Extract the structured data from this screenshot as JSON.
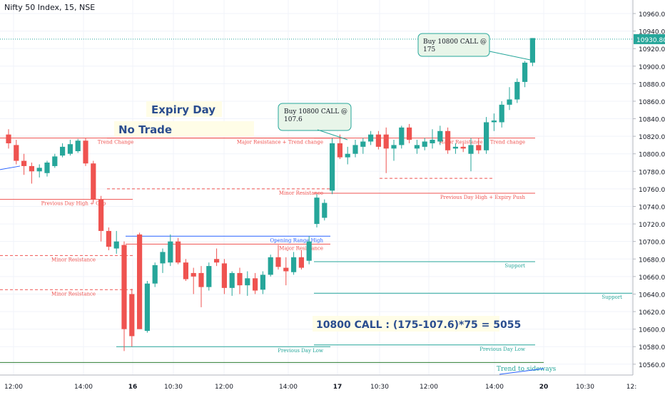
{
  "symbol_title": "Nifty 50 Index, 15, NSE",
  "chart_data": {
    "type": "candlestick",
    "title": "Nifty 50 Index, 15, NSE",
    "ylim": [
      10550,
      10975
    ],
    "y_ticks": [
      10960,
      10940,
      10920,
      10900,
      10880,
      10860,
      10840,
      10820,
      10800,
      10780,
      10760,
      10740,
      10720,
      10700,
      10680,
      10660,
      10640,
      10620,
      10600,
      10580,
      10560
    ],
    "x_ticks": [
      "12:00",
      "14:00",
      "16",
      "10:30",
      "12:00",
      "14:00",
      "17",
      "10:30",
      "12:00",
      "14:00",
      "20",
      "10:30",
      "12:"
    ],
    "last_price": "10930.80",
    "up_color": "#26a69a",
    "down_color": "#ef5350",
    "candles": [
      {
        "o": 10822,
        "h": 10828,
        "l": 10806,
        "c": 10812
      },
      {
        "o": 10810,
        "h": 10816,
        "l": 10788,
        "c": 10792
      },
      {
        "o": 10792,
        "h": 10800,
        "l": 10776,
        "c": 10786
      },
      {
        "o": 10786,
        "h": 10790,
        "l": 10766,
        "c": 10780
      },
      {
        "o": 10780,
        "h": 10788,
        "l": 10773,
        "c": 10784
      },
      {
        "o": 10778,
        "h": 10792,
        "l": 10774,
        "c": 10790
      },
      {
        "o": 10786,
        "h": 10800,
        "l": 10784,
        "c": 10797
      },
      {
        "o": 10798,
        "h": 10812,
        "l": 10796,
        "c": 10808
      },
      {
        "o": 10800,
        "h": 10816,
        "l": 10798,
        "c": 10811
      },
      {
        "o": 10803,
        "h": 10817,
        "l": 10801,
        "c": 10815
      },
      {
        "o": 10815,
        "h": 10818,
        "l": 10786,
        "c": 10789
      },
      {
        "o": 10789,
        "h": 10792,
        "l": 10744,
        "c": 10748
      },
      {
        "o": 10748,
        "h": 10752,
        "l": 10700,
        "c": 10712
      },
      {
        "o": 10712,
        "h": 10716,
        "l": 10690,
        "c": 10694
      },
      {
        "o": 10692,
        "h": 10712,
        "l": 10686,
        "c": 10700
      },
      {
        "o": 10696,
        "h": 10700,
        "l": 10575,
        "c": 10600
      },
      {
        "o": 10640,
        "h": 10646,
        "l": 10580,
        "c": 10592
      },
      {
        "o": 10708,
        "h": 10710,
        "l": 10600,
        "c": 10600
      },
      {
        "o": 10598,
        "h": 10655,
        "l": 10596,
        "c": 10652
      },
      {
        "o": 10652,
        "h": 10676,
        "l": 10648,
        "c": 10673
      },
      {
        "o": 10675,
        "h": 10692,
        "l": 10664,
        "c": 10688
      },
      {
        "o": 10676,
        "h": 10708,
        "l": 10672,
        "c": 10700
      },
      {
        "o": 10700,
        "h": 10704,
        "l": 10674,
        "c": 10676
      },
      {
        "o": 10676,
        "h": 10680,
        "l": 10655,
        "c": 10657
      },
      {
        "o": 10664,
        "h": 10670,
        "l": 10640,
        "c": 10660
      },
      {
        "o": 10664,
        "h": 10672,
        "l": 10625,
        "c": 10648
      },
      {
        "o": 10648,
        "h": 10676,
        "l": 10644,
        "c": 10672
      },
      {
        "o": 10680,
        "h": 10692,
        "l": 10672,
        "c": 10676
      },
      {
        "o": 10675,
        "h": 10680,
        "l": 10640,
        "c": 10647
      },
      {
        "o": 10647,
        "h": 10666,
        "l": 10638,
        "c": 10664
      },
      {
        "o": 10664,
        "h": 10670,
        "l": 10640,
        "c": 10650
      },
      {
        "o": 10650,
        "h": 10666,
        "l": 10638,
        "c": 10658
      },
      {
        "o": 10658,
        "h": 10664,
        "l": 10640,
        "c": 10644
      },
      {
        "o": 10645,
        "h": 10666,
        "l": 10640,
        "c": 10662
      },
      {
        "o": 10662,
        "h": 10685,
        "l": 10660,
        "c": 10682
      },
      {
        "o": 10682,
        "h": 10696,
        "l": 10668,
        "c": 10671
      },
      {
        "o": 10670,
        "h": 10682,
        "l": 10650,
        "c": 10666
      },
      {
        "o": 10665,
        "h": 10688,
        "l": 10662,
        "c": 10682
      },
      {
        "o": 10682,
        "h": 10690,
        "l": 10668,
        "c": 10670
      },
      {
        "o": 10678,
        "h": 10706,
        "l": 10674,
        "c": 10700
      },
      {
        "o": 10720,
        "h": 10754,
        "l": 10716,
        "c": 10750
      },
      {
        "o": 10727,
        "h": 10748,
        "l": 10724,
        "c": 10744
      },
      {
        "o": 10758,
        "h": 10818,
        "l": 10754,
        "c": 10812
      },
      {
        "o": 10812,
        "h": 10822,
        "l": 10794,
        "c": 10796
      },
      {
        "o": 10796,
        "h": 10808,
        "l": 10788,
        "c": 10800
      },
      {
        "o": 10800,
        "h": 10816,
        "l": 10796,
        "c": 10810
      },
      {
        "o": 10808,
        "h": 10818,
        "l": 10800,
        "c": 10814
      },
      {
        "o": 10814,
        "h": 10826,
        "l": 10810,
        "c": 10822
      },
      {
        "o": 10822,
        "h": 10826,
        "l": 10805,
        "c": 10808
      },
      {
        "o": 10822,
        "h": 10830,
        "l": 10778,
        "c": 10806
      },
      {
        "o": 10806,
        "h": 10816,
        "l": 10792,
        "c": 10810
      },
      {
        "o": 10810,
        "h": 10832,
        "l": 10806,
        "c": 10830
      },
      {
        "o": 10830,
        "h": 10834,
        "l": 10812,
        "c": 10816
      },
      {
        "o": 10806,
        "h": 10816,
        "l": 10800,
        "c": 10810
      },
      {
        "o": 10808,
        "h": 10818,
        "l": 10804,
        "c": 10814
      },
      {
        "o": 10812,
        "h": 10828,
        "l": 10806,
        "c": 10816
      },
      {
        "o": 10814,
        "h": 10832,
        "l": 10810,
        "c": 10826
      },
      {
        "o": 10826,
        "h": 10830,
        "l": 10800,
        "c": 10804
      },
      {
        "o": 10806,
        "h": 10812,
        "l": 10800,
        "c": 10808
      },
      {
        "o": 10808,
        "h": 10812,
        "l": 10802,
        "c": 10806
      },
      {
        "o": 10800,
        "h": 10818,
        "l": 10780,
        "c": 10810
      },
      {
        "o": 10810,
        "h": 10818,
        "l": 10800,
        "c": 10804
      },
      {
        "o": 10804,
        "h": 10842,
        "l": 10800,
        "c": 10836
      },
      {
        "o": 10836,
        "h": 10846,
        "l": 10826,
        "c": 10838
      },
      {
        "o": 10836,
        "h": 10860,
        "l": 10830,
        "c": 10856
      },
      {
        "o": 10856,
        "h": 10876,
        "l": 10850,
        "c": 10862
      },
      {
        "o": 10862,
        "h": 10886,
        "l": 10858,
        "c": 10882
      },
      {
        "o": 10882,
        "h": 10906,
        "l": 10876,
        "c": 10904
      },
      {
        "o": 10904,
        "h": 10932,
        "l": 10900,
        "c": 10932
      }
    ],
    "levels": [
      {
        "label": "Trend Change",
        "value": 10818,
        "color": "#ef5350",
        "style": "solid",
        "span": "left"
      },
      {
        "label": "Major Resistance + Trend change",
        "value": 10818,
        "color": "#ef5350",
        "style": "solid",
        "span": "mid"
      },
      {
        "label": "Major Resistance + Trend change",
        "value": 10818,
        "color": "#ef5350",
        "style": "solid",
        "span": "right"
      },
      {
        "label": "Minor Resistance",
        "value": 10760,
        "color": "#ef5350",
        "style": "dashed",
        "span": "mid"
      },
      {
        "label": "Previous Day High + Expiry Push",
        "value": 10755,
        "color": "#ef5350",
        "style": "solid",
        "span": "right"
      },
      {
        "label": "Previous Day High + Gap",
        "value": 10748,
        "color": "#ef5350",
        "style": "solid",
        "span": "left"
      },
      {
        "label": "Opening Range High",
        "value": 10706,
        "color": "#2962ff",
        "style": "solid",
        "span": "mid"
      },
      {
        "label": "Major Resistance",
        "value": 10697,
        "color": "#ef5350",
        "style": "solid",
        "span": "mid"
      },
      {
        "label": "Minor Resistance",
        "value": 10684,
        "color": "#ef5350",
        "style": "dashed",
        "span": "left"
      },
      {
        "label": "Support",
        "value": 10677,
        "color": "#26a69a",
        "style": "solid",
        "span": "right"
      },
      {
        "label": "Minor Resistance",
        "value": 10645,
        "color": "#ef5350",
        "style": "dashed",
        "span": "left"
      },
      {
        "label": "Support",
        "value": 10641,
        "color": "#26a69a",
        "style": "solid",
        "span": "right"
      },
      {
        "label": "Previous Day Low",
        "value": 10580,
        "color": "#26a69a",
        "style": "solid",
        "span": "mid"
      },
      {
        "label": "Previous Day Low",
        "value": 10582,
        "color": "#26a69a",
        "style": "solid",
        "span": "right"
      }
    ],
    "annotations": {
      "expiry_day": "Expiry Day",
      "no_trade": "No Trade",
      "callout_1": "Buy 10800 CALL @ 107.6",
      "callout_2": "Buy 10800 CALL @ 175",
      "profit_calc": "10800 CALL : (175-107.6)*75 = 5055",
      "trend_sideways": "Trend to sideways"
    }
  }
}
